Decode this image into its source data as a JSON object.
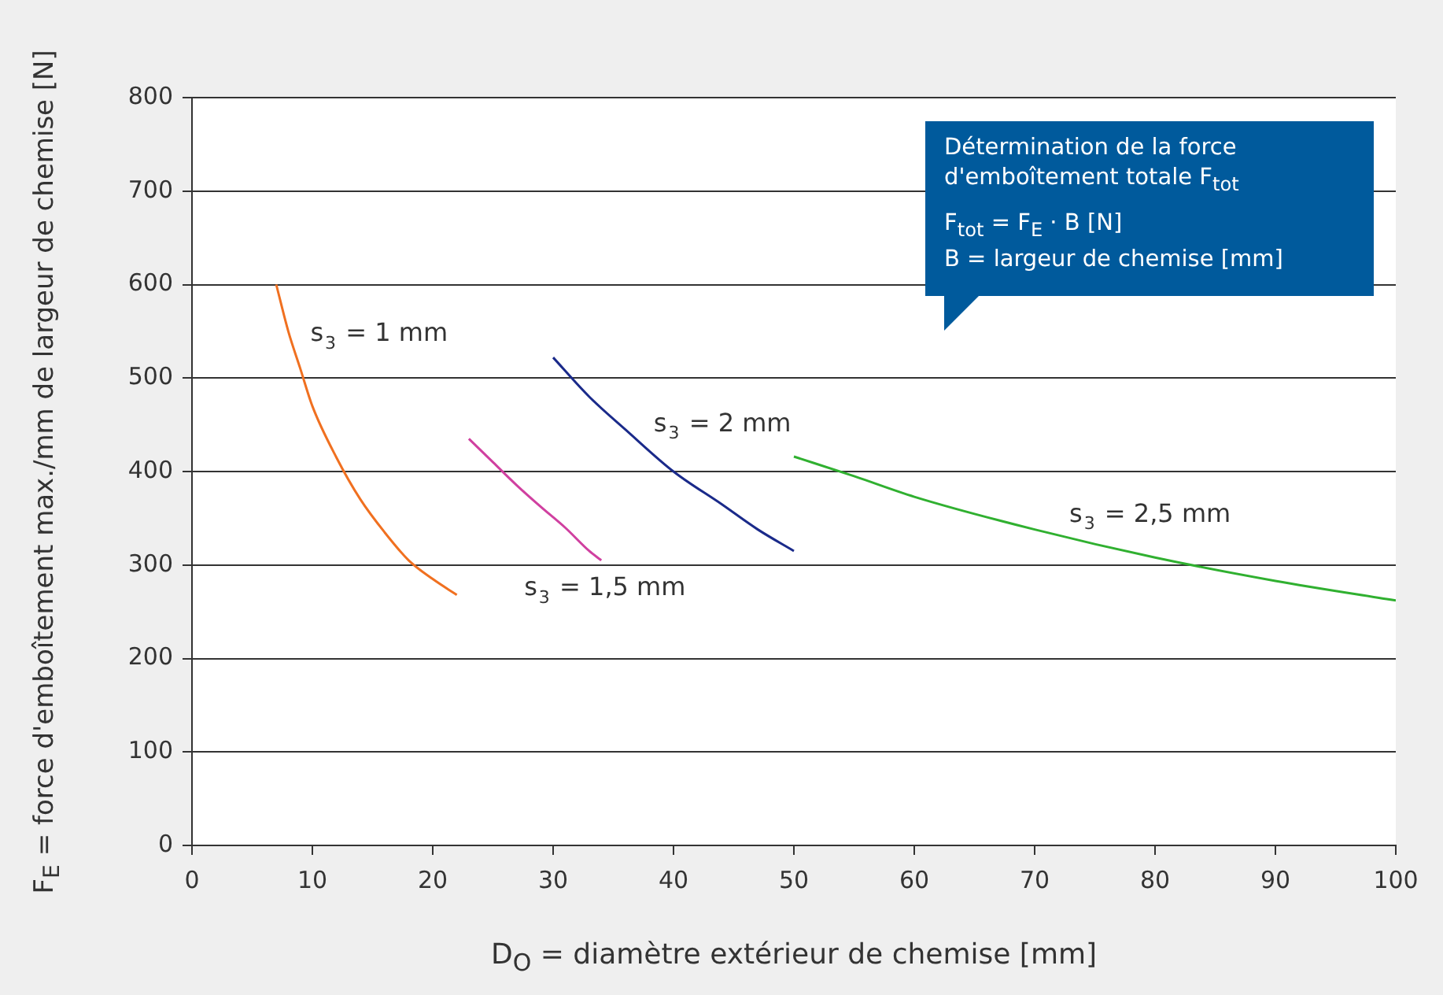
{
  "chart_data": {
    "type": "line",
    "xlabel": "D$_{O}$ = diamètre extérieur de chemise [mm]",
    "ylabel": "F$_{E}$ = force d'emboîtement max./mm de largeur de chemise [N]",
    "xlim": [
      0,
      100
    ],
    "xticks": [
      0,
      10,
      20,
      30,
      40,
      50,
      60,
      70,
      80,
      90,
      100
    ],
    "ylim": [
      0,
      800
    ],
    "yticks": [
      0,
      100,
      200,
      300,
      400,
      500,
      600,
      700,
      800
    ],
    "grid": "y",
    "legend": false,
    "marker": "none",
    "line_style": "solid",
    "series": [
      {
        "name": "s$_{3}$ = 1 mm",
        "color": "#f07020",
        "x": [
          7,
          8,
          9,
          10,
          12,
          14,
          16,
          18,
          20,
          22
        ],
        "values": [
          600,
          550,
          510,
          470,
          415,
          370,
          335,
          305,
          285,
          268
        ]
      },
      {
        "name": "s$_{3}$ = 1,5 mm",
        "color": "#d040a0",
        "x": [
          23,
          25,
          27,
          29,
          31,
          33,
          34
        ],
        "values": [
          435,
          410,
          385,
          362,
          340,
          315,
          305
        ]
      },
      {
        "name": "s$_{3}$ = 2 mm",
        "color": "#1a2a8a",
        "x": [
          30,
          33,
          36,
          40,
          44,
          47,
          50
        ],
        "values": [
          522,
          480,
          445,
          400,
          365,
          338,
          315
        ]
      },
      {
        "name": "s$_{3}$ = 2,5 mm",
        "color": "#30b030",
        "x": [
          50,
          55,
          60,
          70,
          80,
          90,
          100
        ],
        "values": [
          416,
          395,
          373,
          338,
          308,
          283,
          262
        ]
      }
    ],
    "annotations": [
      "Détermination de la force d'emboîtement totale F$_{tot}$",
      "F$_{tot}$ = F$_{E}$ · B [N]",
      "B = largeur de chemise [mm]"
    ]
  }
}
